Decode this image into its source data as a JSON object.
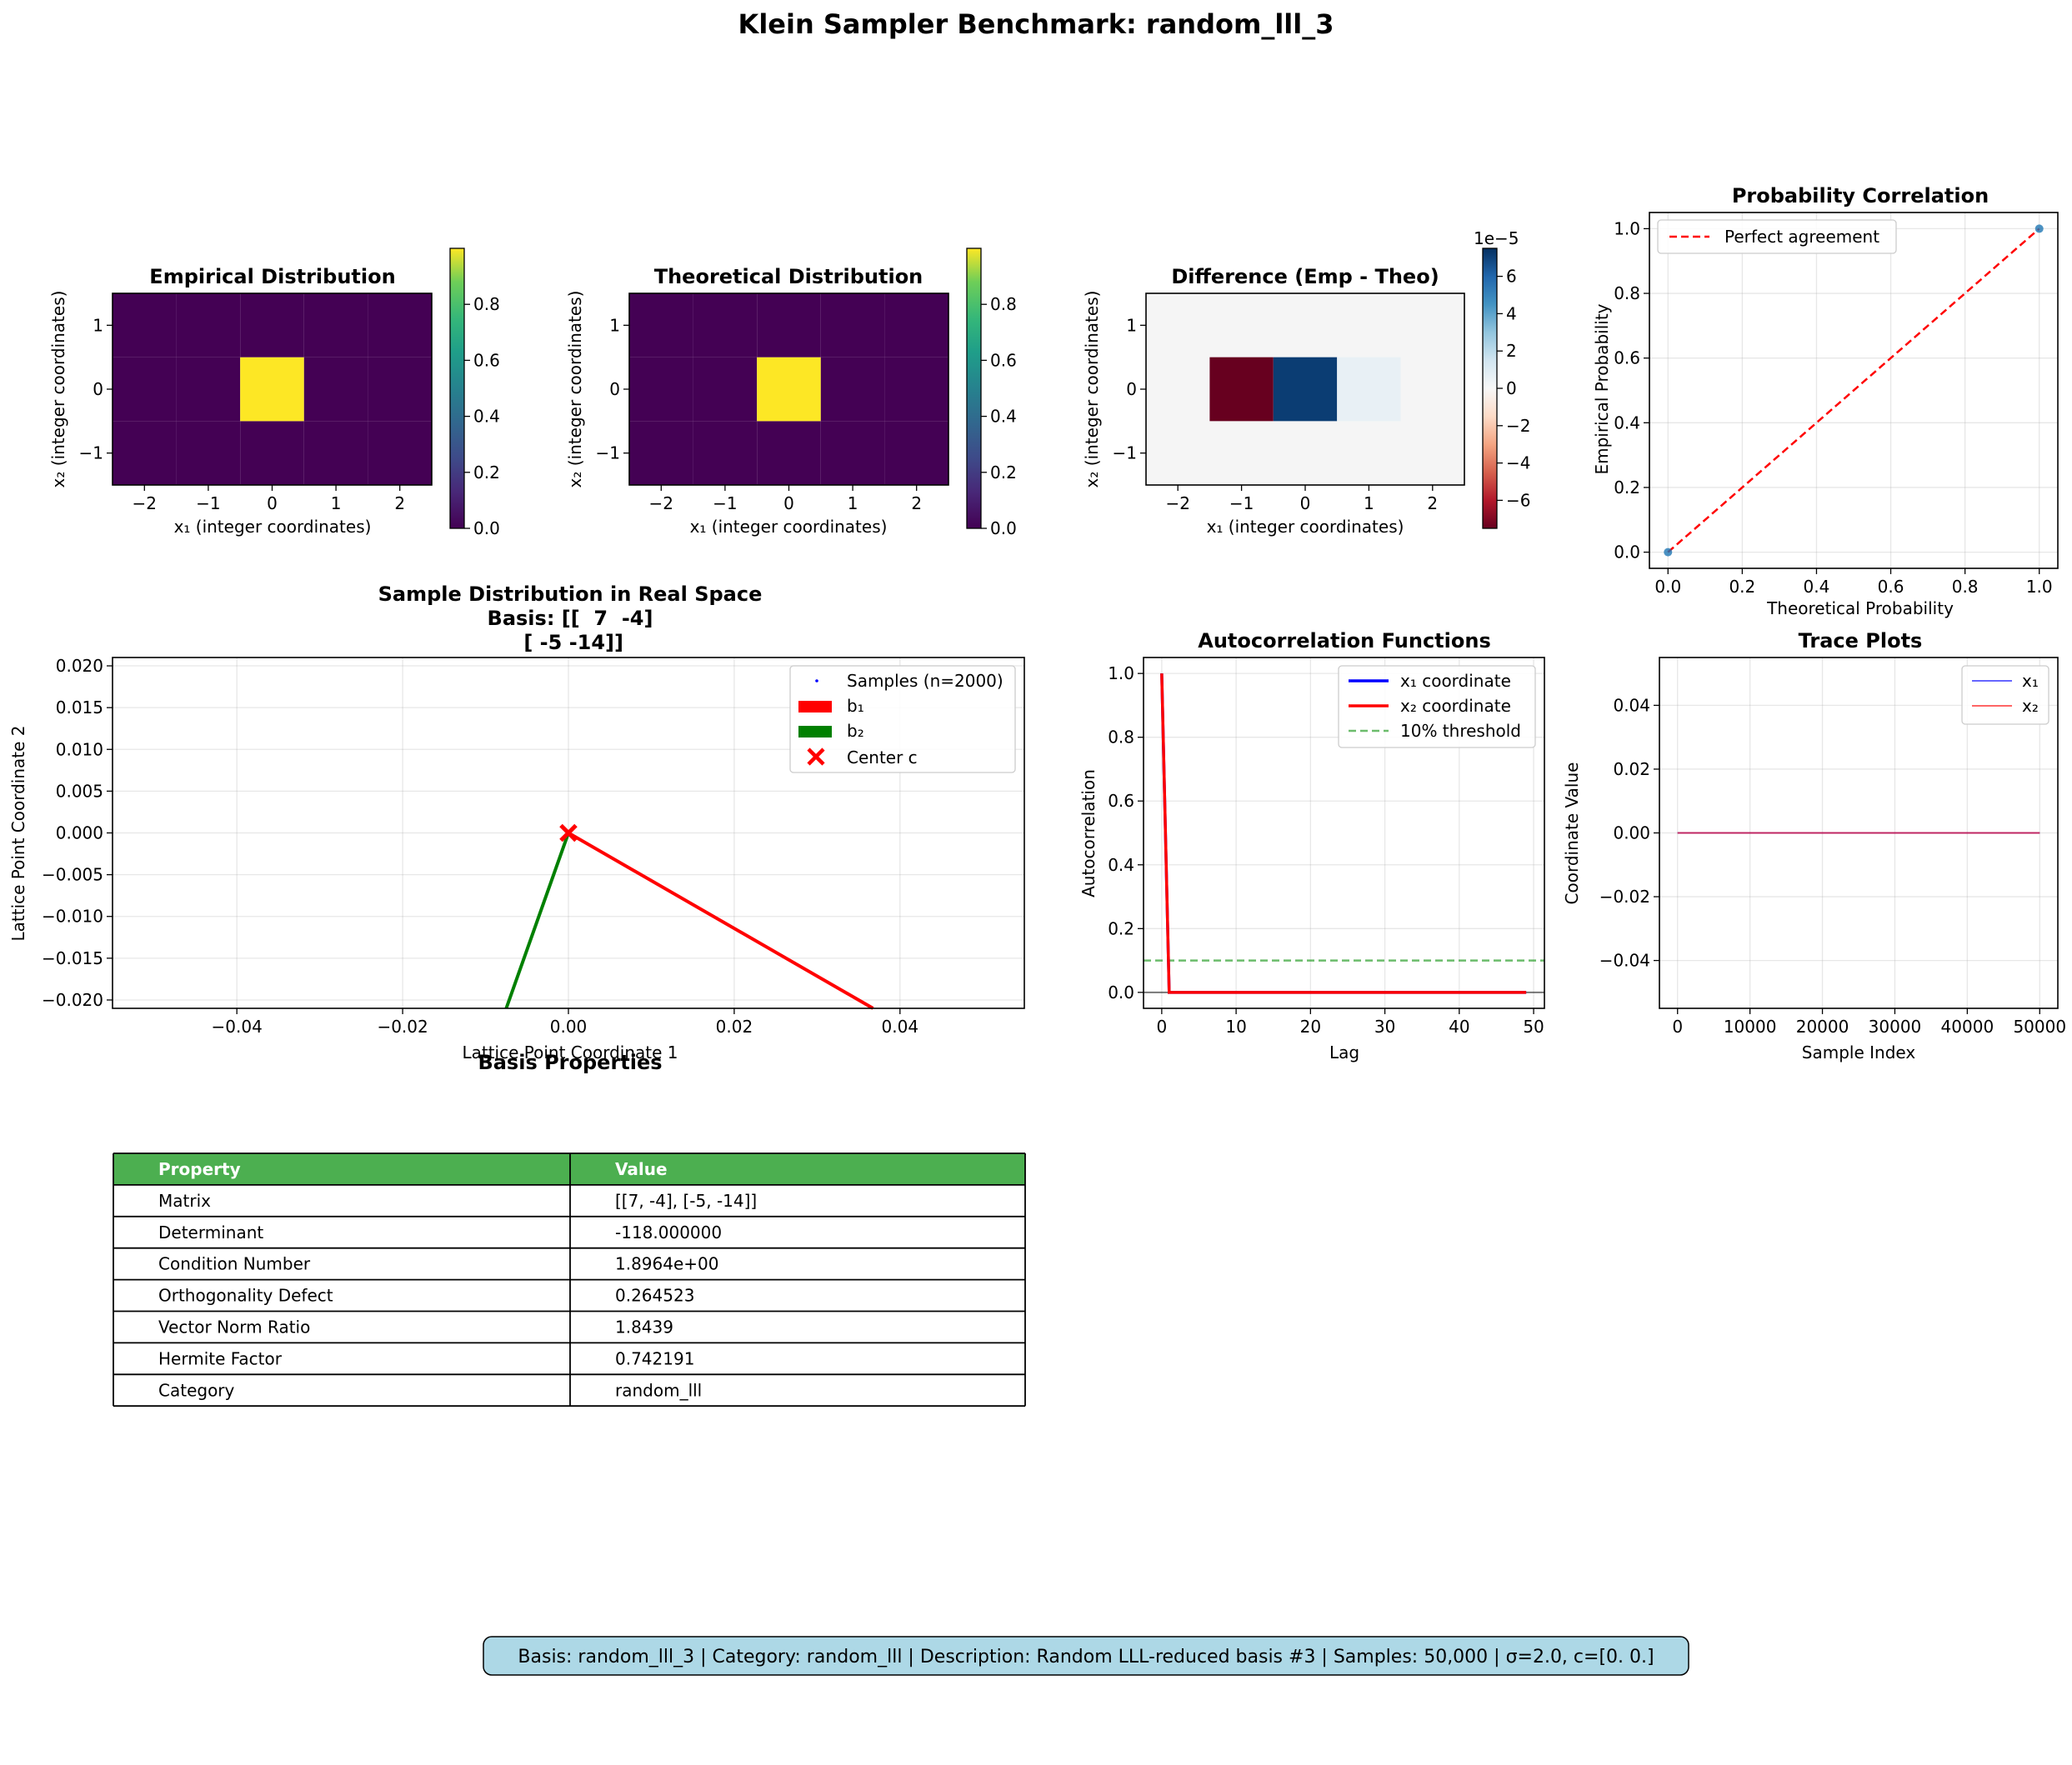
{
  "figure": {
    "title": "Klein Sampler Benchmark: random_lll_3",
    "footer": "Basis: random_lll_3 | Category: random_lll | Description: Random LLL-reduced basis #3 | Samples: 50,000 | σ=2.0, c=[0. 0.]"
  },
  "colors": {
    "viridis_low": "#440154",
    "viridis_high": "#fde725",
    "rdbu_neg": "#67001f",
    "rdbu_pos": "#0b3d73",
    "rdbu_small_pos": "#e8f0f5",
    "rdbu_zero": "#f5f5f5",
    "red": "#ff0000",
    "blue": "#0000ff",
    "green": "#008000",
    "threshold_green": "#2ca02c",
    "table_header": "#4caf50",
    "footer_box": "#add8e6",
    "scatter_point": "#1f77b4"
  },
  "table": {
    "title": "Basis Properties",
    "headers": [
      "Property",
      "Value"
    ],
    "rows": [
      [
        "Matrix",
        "[[7, -4], [-5, -14]]"
      ],
      [
        "Determinant",
        "-118.000000"
      ],
      [
        "Condition Number",
        "1.8964e+00"
      ],
      [
        "Orthogonality Defect",
        "0.264523"
      ],
      [
        "Vector Norm Ratio",
        "1.8439"
      ],
      [
        "Hermite Factor",
        "0.742191"
      ],
      [
        "Category",
        "random_lll"
      ]
    ]
  },
  "chart_data": [
    {
      "type": "heatmap",
      "title": "Empirical Distribution",
      "xlabel": "x₁ (integer coordinates)",
      "ylabel": "x₂ (integer coordinates)",
      "x": [
        -2,
        -1,
        0,
        1,
        2
      ],
      "y": [
        -1,
        0,
        1
      ],
      "values": [
        [
          0,
          0,
          0,
          0,
          0
        ],
        [
          0,
          0,
          1.0,
          0,
          0
        ],
        [
          0,
          0,
          0,
          0,
          0
        ]
      ],
      "xlim": [
        -2.5,
        2.5
      ],
      "ylim": [
        -1.5,
        1.5
      ],
      "xticks": [
        -2,
        -1,
        0,
        1,
        2
      ],
      "yticks": [
        -1,
        0,
        1
      ],
      "colormap": "viridis",
      "colorbar": {
        "range": [
          0,
          1.0
        ],
        "ticks": [
          0.0,
          0.2,
          0.4,
          0.6,
          0.8
        ],
        "tick_labels": [
          "0.0",
          "0.2",
          "0.4",
          "0.6",
          "0.8"
        ]
      }
    },
    {
      "type": "heatmap",
      "title": "Theoretical Distribution",
      "xlabel": "x₁ (integer coordinates)",
      "ylabel": "x₂ (integer coordinates)",
      "x": [
        -2,
        -1,
        0,
        1,
        2
      ],
      "y": [
        -1,
        0,
        1
      ],
      "values": [
        [
          0,
          0,
          0,
          0,
          0
        ],
        [
          0,
          0,
          1.0,
          0,
          0
        ],
        [
          0,
          0,
          0,
          0,
          0
        ]
      ],
      "xlim": [
        -2.5,
        2.5
      ],
      "ylim": [
        -1.5,
        1.5
      ],
      "xticks": [
        -2,
        -1,
        0,
        1,
        2
      ],
      "yticks": [
        -1,
        0,
        1
      ],
      "colormap": "viridis",
      "colorbar": {
        "range": [
          0,
          1.0
        ],
        "ticks": [
          0.0,
          0.2,
          0.4,
          0.6,
          0.8
        ],
        "tick_labels": [
          "0.0",
          "0.2",
          "0.4",
          "0.6",
          "0.8"
        ]
      }
    },
    {
      "type": "heatmap",
      "title": "Difference (Emp - Theo)",
      "xlabel": "x₁ (integer coordinates)",
      "ylabel": "x₂ (integer coordinates)",
      "x": [
        -1,
        0,
        1
      ],
      "y": [
        0
      ],
      "values": [
        [
          -7.5e-05,
          7e-05,
          5e-06
        ]
      ],
      "xlim": [
        -2.5,
        2.5
      ],
      "ylim": [
        -1.5,
        1.5
      ],
      "xticks": [
        -2,
        -1,
        0,
        1,
        2
      ],
      "yticks": [
        -1,
        0,
        1
      ],
      "colormap": "RdBu",
      "colorbar": {
        "range": [
          -7.5,
          7.5
        ],
        "ticks": [
          -6,
          -4,
          -2,
          0,
          2,
          4,
          6
        ],
        "tick_labels": [
          "−6",
          "−4",
          "−2",
          "0",
          "2",
          "4",
          "6"
        ],
        "offset_label": "1e−5"
      }
    },
    {
      "type": "scatter",
      "title": "Probability Correlation",
      "xlabel": "Theoretical Probability",
      "ylabel": "Empirical Probability",
      "points": [
        {
          "x": 0.0,
          "y": 0.0
        },
        {
          "x": 1.0,
          "y": 1.0
        }
      ],
      "reference_line": {
        "name": "Perfect agreement",
        "x": [
          0,
          1
        ],
        "y": [
          0,
          1
        ]
      },
      "xlim": [
        -0.05,
        1.05
      ],
      "ylim": [
        -0.05,
        1.05
      ],
      "xticks": [
        0,
        0.2,
        0.4,
        0.6,
        0.8,
        1.0
      ],
      "xtick_labels": [
        "0.0",
        "0.2",
        "0.4",
        "0.6",
        "0.8",
        "1.0"
      ],
      "yticks": [
        0,
        0.2,
        0.4,
        0.6,
        0.8,
        1.0
      ],
      "ytick_labels": [
        "0.0",
        "0.2",
        "0.4",
        "0.6",
        "0.8",
        "1.0"
      ],
      "legend": "top-left",
      "grid": true
    },
    {
      "type": "line",
      "title": "Sample Distribution in Real Space",
      "title_lines": [
        "Basis: [[  7  -4]",
        " [ -5 -14]]"
      ],
      "xlabel": "Lattice Point Coordinate 1",
      "ylabel": "Lattice Point Coordinate 2",
      "samples": {
        "name": "Samples (n=2000)",
        "x": [
          0
        ],
        "y": [
          0
        ]
      },
      "vectors": [
        {
          "name": "b₁",
          "x": [
            0,
            7
          ],
          "y": [
            0,
            -4
          ]
        },
        {
          "name": "b₂",
          "x": [
            0,
            -5
          ],
          "y": [
            0,
            -14
          ]
        }
      ],
      "center": {
        "name": "Center c",
        "x": 0,
        "y": 0
      },
      "xlim": [
        -0.055,
        0.055
      ],
      "ylim": [
        -0.021,
        0.021
      ],
      "xticks": [
        -0.04,
        -0.02,
        0.0,
        0.02,
        0.04
      ],
      "xtick_labels": [
        "−0.04",
        "−0.02",
        "0.00",
        "0.02",
        "0.04"
      ],
      "yticks": [
        -0.02,
        -0.015,
        -0.01,
        -0.005,
        0,
        0.005,
        0.01,
        0.015,
        0.02
      ],
      "ytick_labels": [
        "−0.020",
        "−0.015",
        "−0.010",
        "−0.005",
        "0.000",
        "0.005",
        "0.010",
        "0.015",
        "0.020"
      ],
      "legend": "top-right",
      "grid": true
    },
    {
      "type": "line",
      "title": "Autocorrelation Functions",
      "xlabel": "Lag",
      "ylabel": "Autocorrelation",
      "series": [
        {
          "name": "x₁ coordinate",
          "x": [
            0,
            1,
            49
          ],
          "y": [
            1.0,
            0.0,
            0.0
          ]
        },
        {
          "name": "x₂ coordinate",
          "x": [
            0,
            1,
            49
          ],
          "y": [
            1.0,
            0.0,
            0.0
          ]
        }
      ],
      "threshold": {
        "name": "10% threshold",
        "y": 0.1
      },
      "zero_line": 0,
      "xlim": [
        -2.45,
        51.45
      ],
      "ylim": [
        -0.05,
        1.05
      ],
      "xticks": [
        0,
        10,
        20,
        30,
        40,
        50
      ],
      "xtick_labels": [
        "0",
        "10",
        "20",
        "30",
        "40",
        "50"
      ],
      "yticks": [
        0,
        0.2,
        0.4,
        0.6,
        0.8,
        1.0
      ],
      "ytick_labels": [
        "0.0",
        "0.2",
        "0.4",
        "0.6",
        "0.8",
        "1.0"
      ],
      "legend": "top-right",
      "grid": true
    },
    {
      "type": "line",
      "title": "Trace Plots",
      "xlabel": "Sample Index",
      "ylabel": "Coordinate Value",
      "series": [
        {
          "name": "x₁",
          "x": [
            0,
            50000
          ],
          "y": [
            0,
            0
          ]
        },
        {
          "name": "x₂",
          "x": [
            0,
            50000
          ],
          "y": [
            0,
            0
          ]
        }
      ],
      "xlim": [
        -2500,
        52500
      ],
      "ylim": [
        -0.055,
        0.055
      ],
      "xticks": [
        0,
        10000,
        20000,
        30000,
        40000,
        50000
      ],
      "xtick_labels": [
        "0",
        "10000",
        "20000",
        "30000",
        "40000",
        "50000"
      ],
      "yticks": [
        -0.04,
        -0.02,
        0,
        0.02,
        0.04
      ],
      "ytick_labels": [
        "−0.04",
        "−0.02",
        "0.00",
        "0.02",
        "0.04"
      ],
      "legend": "top-right",
      "grid": true
    }
  ]
}
